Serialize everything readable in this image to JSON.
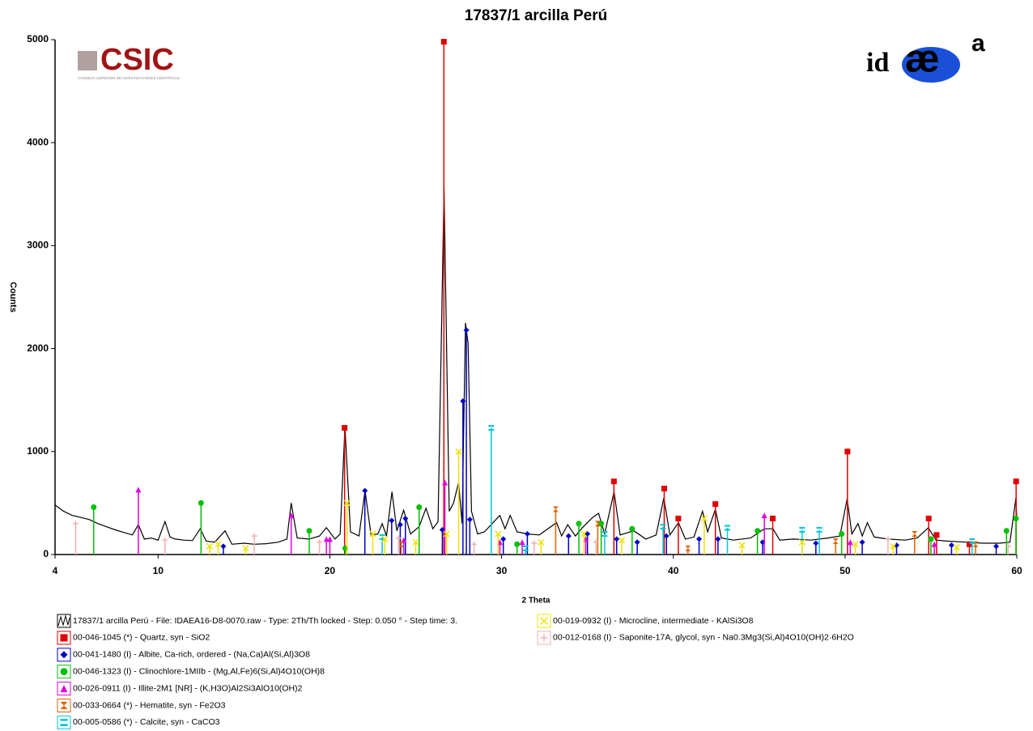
{
  "chart_data": {
    "type": "xrd",
    "title": "17837/1 arcilla Perú",
    "x_label": "2 Theta",
    "y_label": "Counts",
    "xlim": [
      4,
      60
    ],
    "xticks": [
      4,
      10,
      20,
      30,
      40,
      50,
      60
    ],
    "ylim": [
      0,
      5000
    ],
    "yticks": [
      0,
      1000,
      2000,
      3000,
      4000,
      5000
    ],
    "grid": false,
    "logos": {
      "left": "CSIC",
      "left_sub": "CONSEJO SUPERIOR DE INVESTIGACIONES CIENTÍFICAS",
      "right_a": "id",
      "right_b": "æ",
      "right_c": "a"
    },
    "series": [
      {
        "name": "17837/1 arcilla Perú - File: IDAEA16-D8-0070.raw - Type: 2Th/Th locked - Step: 0.050 ° - Step time: 3.",
        "kind": "line",
        "color": "#000000",
        "x": [
          4,
          4.5,
          5,
          5.5,
          6,
          6.5,
          7,
          7.5,
          8,
          8.5,
          8.85,
          9.2,
          9.6,
          10,
          10.4,
          10.7,
          11,
          11.5,
          12,
          12.45,
          12.8,
          13.3,
          13.9,
          14.3,
          15,
          15.6,
          16.3,
          17,
          17.5,
          17.75,
          18.1,
          18.8,
          19.4,
          19.8,
          20.3,
          20.6,
          20.88,
          21.2,
          21.7,
          22.05,
          22.4,
          22.8,
          23.05,
          23.3,
          23.62,
          23.9,
          24.3,
          24.7,
          25.2,
          25.6,
          26,
          26.3,
          26.65,
          26.95,
          27.2,
          27.5,
          27.7,
          27.9,
          28.05,
          28.25,
          28.6,
          29,
          29.45,
          29.9,
          30.2,
          30.5,
          30.9,
          31.5,
          32.2,
          33.2,
          33.5,
          33.85,
          34.3,
          34.7,
          35.3,
          35.65,
          36,
          36.55,
          36.9,
          37.7,
          38.4,
          39.0,
          39.45,
          39.8,
          40.3,
          40.7,
          41.2,
          41.7,
          42.0,
          42.45,
          42.8,
          43.5,
          44.5,
          45.3,
          45.8,
          46.2,
          47,
          48,
          49,
          49.7,
          50.12,
          50.4,
          50.75,
          51.0,
          51.3,
          51.7,
          52.5,
          53.5,
          54.2,
          54.85,
          55.3,
          56,
          57,
          58,
          59,
          59.6,
          59.95,
          60
        ],
        "values": [
          480,
          420,
          380,
          360,
          340,
          300,
          270,
          240,
          215,
          190,
          290,
          150,
          160,
          140,
          320,
          170,
          150,
          140,
          135,
          250,
          130,
          120,
          230,
          100,
          110,
          100,
          105,
          120,
          150,
          500,
          160,
          150,
          180,
          260,
          150,
          200,
          1240,
          220,
          180,
          620,
          190,
          200,
          300,
          180,
          610,
          230,
          430,
          200,
          270,
          450,
          250,
          320,
          3560,
          420,
          500,
          700,
          300,
          2250,
          2050,
          420,
          200,
          220,
          300,
          380,
          250,
          380,
          220,
          200,
          190,
          310,
          180,
          290,
          180,
          260,
          360,
          400,
          200,
          610,
          190,
          230,
          150,
          190,
          550,
          190,
          310,
          150,
          170,
          420,
          220,
          440,
          160,
          140,
          160,
          250,
          250,
          140,
          150,
          140,
          160,
          180,
          540,
          200,
          300,
          180,
          310,
          170,
          150,
          140,
          160,
          260,
          140,
          130,
          120,
          110,
          110,
          120,
          550,
          340
        ]
      },
      {
        "name": "00-046-1045 (*) - Quartz, syn - SiO2",
        "kind": "stem",
        "marker": "square",
        "color": "#e00000",
        "x": [
          20.86,
          26.64,
          36.54,
          39.47,
          40.29,
          42.45,
          45.79,
          50.14,
          54.87,
          55.33,
          57.24,
          59.96
        ],
        "values": [
          1230,
          4980,
          710,
          640,
          350,
          490,
          350,
          1000,
          350,
          190,
          100,
          710
        ]
      },
      {
        "name": "00-041-1480 (I) - Albite, Ca-rich, ordered - (Na,Ca)Al(Si,Al)3O8",
        "kind": "stem",
        "marker": "diamond",
        "color": "#0000c8",
        "x": [
          13.8,
          22.04,
          23.6,
          24.1,
          24.4,
          26.55,
          27.75,
          27.95,
          28.15,
          30.1,
          31.5,
          33.9,
          35.0,
          36.7,
          37.9,
          39.6,
          41.5,
          42.6,
          45.2,
          48.3,
          51.0,
          53.0,
          56.2,
          58.8
        ],
        "values": [
          80,
          620,
          330,
          290,
          350,
          240,
          1490,
          2180,
          340,
          150,
          200,
          180,
          200,
          150,
          120,
          180,
          150,
          150,
          120,
          110,
          120,
          90,
          90,
          80
        ]
      },
      {
        "name": "00-046-1323 (I) - Clinochlore-1MIIb - (Mg,Al,Fe)6(Si,Al)4O10(OH)8",
        "kind": "stem",
        "marker": "circle",
        "color": "#00c000",
        "x": [
          6.25,
          12.5,
          18.8,
          20.9,
          25.2,
          30.9,
          34.5,
          35.8,
          37.6,
          44.9,
          49.8,
          55.0,
          59.4,
          59.95
        ],
        "values": [
          460,
          500,
          230,
          60,
          460,
          100,
          300,
          300,
          250,
          230,
          200,
          150,
          230,
          350
        ]
      },
      {
        "name": "00-026-0911 (I) - Illite-2M1 [NR] - (K,H3O)Al2Si3AlO10(OH)2",
        "kind": "stem",
        "marker": "triangle",
        "color": "#e000e0",
        "x": [
          8.85,
          17.75,
          19.8,
          20.0,
          24.3,
          26.7,
          29.9,
          31.2,
          34.9,
          45.3,
          50.3,
          55.2
        ],
        "values": [
          630,
          380,
          150,
          150,
          140,
          700,
          120,
          120,
          150,
          380,
          120,
          100
        ]
      },
      {
        "name": "00-033-0664 (*) - Hematite, syn - Fe2O3",
        "kind": "stem",
        "marker": "hourglass",
        "color": "#e06000",
        "x": [
          24.15,
          33.15,
          35.6,
          40.85,
          49.45,
          54.05,
          57.6
        ],
        "values": [
          100,
          440,
          300,
          60,
          130,
          200,
          100
        ]
      },
      {
        "name": "00-005-0586 (*) - Calcite, syn - CaCO3",
        "kind": "stem",
        "marker": "equals",
        "color": "#00c8d8",
        "x": [
          23.05,
          29.4,
          31.4,
          36.0,
          39.4,
          43.15,
          47.5,
          48.5,
          57.4
        ],
        "values": [
          170,
          1230,
          60,
          200,
          270,
          260,
          240,
          240,
          130
        ]
      },
      {
        "name": "00-019-0932 (I) - Microcline, intermediate - KAlSi3O8",
        "kind": "stem",
        "marker": "cross",
        "color": "#f0e000",
        "x": [
          13.0,
          13.5,
          15.1,
          21.0,
          22.5,
          23.2,
          25.0,
          26.8,
          27.5,
          29.8,
          32.3,
          34.8,
          37.0,
          41.8,
          44.0,
          47.5,
          50.6,
          52.8,
          56.5
        ],
        "values": [
          80,
          100,
          60,
          500,
          200,
          150,
          120,
          200,
          1000,
          200,
          120,
          200,
          140,
          350,
          90,
          120,
          100,
          80,
          70
        ]
      },
      {
        "name": "00-012-0168 (I) - Saponite-17A, glycol, syn - Na0.3Mg3(Si,Al)4O10(OH)2·6H2O",
        "kind": "stem",
        "marker": "plus",
        "color": "#f0b0b0",
        "x": [
          5.2,
          10.4,
          15.6,
          19.4,
          24.0,
          28.4,
          31.9,
          35.5,
          52.5,
          59.5
        ],
        "values": [
          300,
          140,
          180,
          120,
          160,
          100,
          110,
          120,
          150,
          80
        ]
      }
    ]
  }
}
